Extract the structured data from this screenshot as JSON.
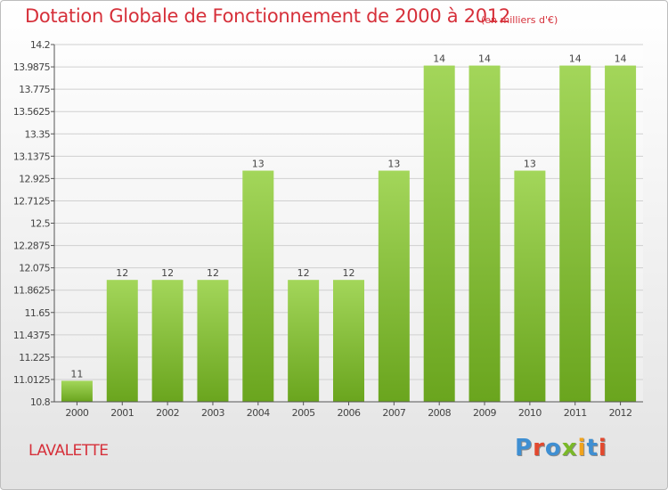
{
  "header": {
    "title": "Dotation Globale de Fonctionnement de 2000 à 2012",
    "subtitle": "(en milliers d'€)"
  },
  "footer": {
    "commune": "LAVALETTE",
    "logo": "Proxiti"
  },
  "colors": {
    "title": "#d6303a",
    "bar_light": "#a3d65a",
    "bar_dark": "#6aa51e",
    "logo_letters": [
      "#3f8fd2",
      "#e2492f",
      "#3f8fd2",
      "#7ab828",
      "#f1a31c",
      "#3f8fd2",
      "#e2492f"
    ]
  },
  "chart_data": {
    "type": "bar",
    "title": "Dotation Globale de Fonctionnement de 2000 à 2012",
    "subtitle": "(en milliers d'€)",
    "categories": [
      "2000",
      "2001",
      "2002",
      "2003",
      "2004",
      "2005",
      "2006",
      "2007",
      "2008",
      "2009",
      "2010",
      "2011",
      "2012"
    ],
    "values": [
      11.0,
      11.96,
      11.96,
      11.96,
      13.0,
      11.96,
      11.96,
      13.0,
      14.0,
      14.0,
      13.0,
      14.0,
      14.0
    ],
    "data_labels": [
      "11",
      "12",
      "12",
      "12",
      "13",
      "12",
      "12",
      "13",
      "14",
      "14",
      "13",
      "14",
      "14"
    ],
    "ylim": [
      10.8,
      14.2
    ],
    "yticks": [
      "10.8",
      "11.0125",
      "11.225",
      "11.4375",
      "11.65",
      "11.8625",
      "12.075",
      "12.2875",
      "12.5",
      "12.7125",
      "12.925",
      "13.1375",
      "13.35",
      "13.5625",
      "13.775",
      "13.9875",
      "14.2"
    ],
    "grid": true,
    "xlabel": "",
    "ylabel": ""
  }
}
